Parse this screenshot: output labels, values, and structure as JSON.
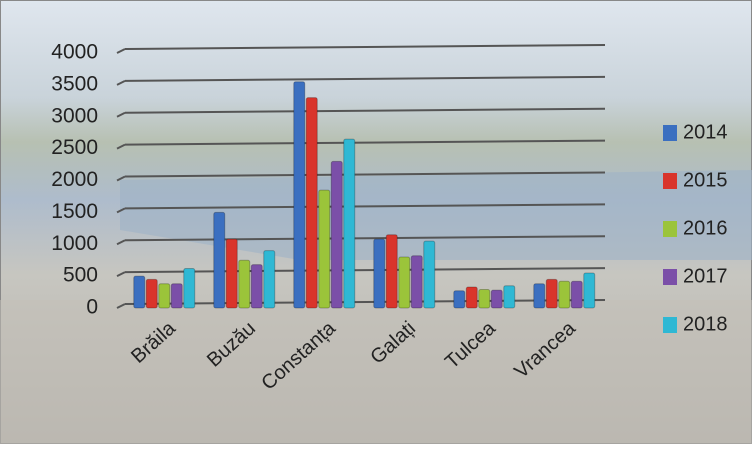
{
  "chart_data": {
    "type": "bar",
    "categories": [
      "Brăila",
      "Buzău",
      "Constanța",
      "Galați",
      "Tulcea",
      "Vrancea"
    ],
    "series": [
      {
        "name": "2014",
        "color": "#3b6fc0",
        "values": [
          500,
          1500,
          3550,
          1080,
          270,
          380
        ]
      },
      {
        "name": "2015",
        "color": "#d9342b",
        "values": [
          450,
          1080,
          3300,
          1150,
          330,
          450
        ]
      },
      {
        "name": "2016",
        "color": "#9bc43a",
        "values": [
          380,
          750,
          1850,
          800,
          290,
          420
        ]
      },
      {
        "name": "2017",
        "color": "#7b4fa8",
        "values": [
          380,
          680,
          2300,
          820,
          280,
          420
        ]
      },
      {
        "name": "2018",
        "color": "#2fb8d4",
        "values": [
          620,
          900,
          2650,
          1050,
          350,
          550
        ]
      }
    ],
    "ylim": [
      0,
      4000
    ],
    "yticks": [
      0,
      500,
      1000,
      1500,
      2000,
      2500,
      3000,
      3500,
      4000
    ],
    "grid": true,
    "legend": "right"
  }
}
